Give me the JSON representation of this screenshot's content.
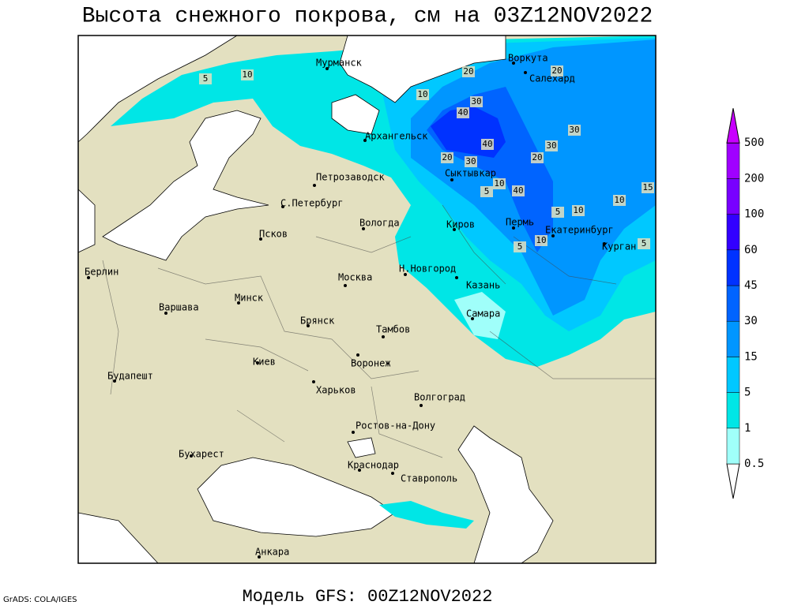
{
  "title": "Высота снежного покрова, см на 03Z12NOV2022",
  "footer": "Модель GFS: 00Z12NOV2022",
  "credit": "GrADS: COLA/IGES",
  "cities": [
    "Мурманск",
    "Воркута",
    "Салехард",
    "Архангельск",
    "Петрозаводск",
    "Сыктывкар",
    "С.Петербург",
    "Вологда",
    "Киров",
    "Пермь",
    "Екатеринбург",
    "Курган",
    "Псков",
    "Н.Новгород",
    "Москва",
    "Казань",
    "Берлин",
    "Минск",
    "Варшава",
    "Самара",
    "Брянск",
    "Тамбов",
    "Киев",
    "Воронеж",
    "Будапешт",
    "Харьков",
    "Волгоград",
    "Ростов-на-Дону",
    "Бухарест",
    "Краснодар",
    "Ставрополь",
    "Анкара"
  ],
  "contour_labels": [
    10,
    20,
    20,
    10,
    30,
    40,
    30,
    40,
    30,
    20,
    30,
    20,
    10,
    40,
    5,
    10,
    15,
    10,
    5,
    10,
    5,
    5,
    5
  ],
  "legend": {
    "levels": [
      0.5,
      1,
      5,
      15,
      30,
      45,
      60,
      100,
      200,
      500
    ],
    "colors": [
      "#ffffff",
      "#a0fffa",
      "#00e6e6",
      "#00c8ff",
      "#0096ff",
      "#0064ff",
      "#0032ff",
      "#3200ff",
      "#7800ff",
      "#a000ff",
      "#c800ff"
    ]
  }
}
